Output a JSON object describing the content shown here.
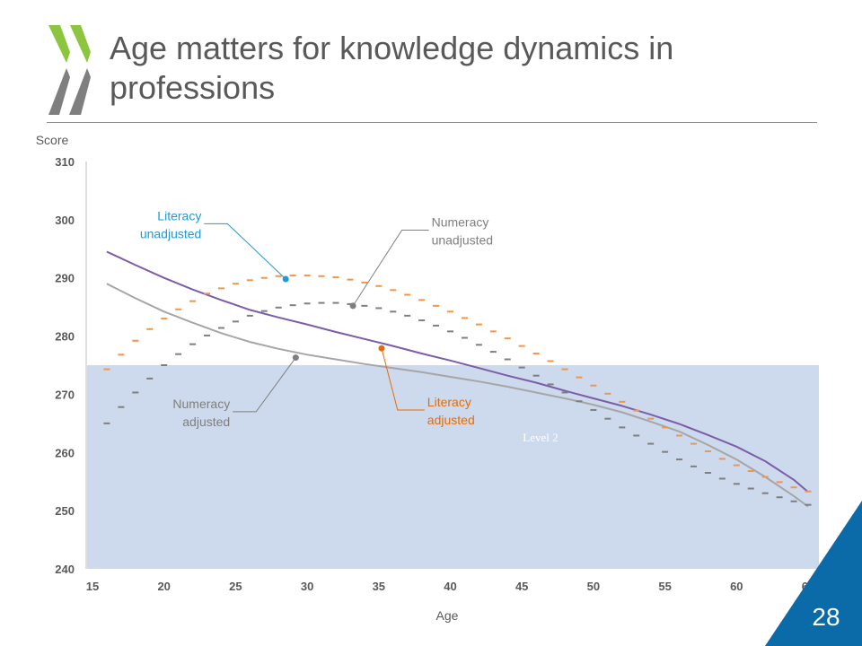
{
  "title": "Age matters for knowledge dynamics in professions",
  "slide_number": "28",
  "colors": {
    "logo_green": "#8cc63f",
    "logo_grey": "#7f7f7f",
    "band": "#cdd9ec",
    "literacy_line": "#7b5ea7",
    "numeracy_line": "#a6a6a6",
    "literacy_dash": "#f0964a",
    "numeracy_dash": "#7f7f7f",
    "accent_blue": "#1f9ad6",
    "accent_orange": "#e46c0a",
    "corner": "#0b6aa8"
  },
  "chart_data": {
    "type": "line",
    "xlabel": "Age",
    "ylabel": "Score",
    "xlim": [
      15,
      65
    ],
    "ylim": [
      240,
      310
    ],
    "xticks": [
      15,
      20,
      25,
      30,
      35,
      40,
      45,
      50,
      55,
      60,
      65
    ],
    "yticks": [
      240,
      250,
      260,
      270,
      280,
      290,
      300,
      310
    ],
    "band": {
      "label": "Level 2",
      "from": 240,
      "to": 275
    },
    "series": [
      {
        "name": "Literacy adjusted",
        "style": "solid",
        "color": "#7b5ea7",
        "x": [
          16,
          18,
          20,
          22,
          24,
          26,
          28,
          30,
          32,
          34,
          36,
          38,
          40,
          42,
          44,
          46,
          48,
          50,
          52,
          54,
          56,
          58,
          60,
          62,
          64,
          65
        ],
        "y": [
          294.5,
          292.2,
          290,
          288,
          286.2,
          284.5,
          283.2,
          282,
          280.7,
          279.5,
          278.3,
          277,
          275.8,
          274.5,
          273.2,
          272,
          270.6,
          269.3,
          268,
          266.5,
          264.9,
          263,
          261,
          258.5,
          255.3,
          253.2
        ]
      },
      {
        "name": "Numeracy adjusted",
        "style": "solid",
        "color": "#a6a6a6",
        "x": [
          16,
          18,
          20,
          22,
          24,
          26,
          28,
          30,
          32,
          34,
          36,
          38,
          40,
          42,
          44,
          46,
          48,
          50,
          52,
          54,
          56,
          58,
          60,
          62,
          64,
          65
        ],
        "y": [
          289,
          286.5,
          284.2,
          282.3,
          280.5,
          279,
          277.8,
          276.8,
          276,
          275.2,
          274.5,
          273.8,
          273,
          272.2,
          271.3,
          270.3,
          269.3,
          268.2,
          266.9,
          265.3,
          263.6,
          261.3,
          258.8,
          255.8,
          252.5,
          250.7
        ]
      },
      {
        "name": "Literacy unadjusted",
        "style": "dashed",
        "color": "#f0964a",
        "x": [
          16,
          17,
          18,
          19,
          20,
          21,
          22,
          23,
          24,
          25,
          26,
          27,
          28,
          29,
          30,
          31,
          32,
          33,
          34,
          35,
          36,
          37,
          38,
          39,
          40,
          41,
          42,
          43,
          44,
          45,
          46,
          47,
          48,
          49,
          50,
          51,
          52,
          53,
          54,
          55,
          56,
          57,
          58,
          59,
          60,
          61,
          62,
          63,
          64,
          65
        ],
        "y": [
          274.3,
          276.8,
          279.2,
          281.2,
          283,
          284.6,
          286,
          287.3,
          288.2,
          289,
          289.6,
          290,
          290.3,
          290.4,
          290.4,
          290.3,
          290.1,
          289.7,
          289.2,
          288.6,
          287.9,
          287.1,
          286.2,
          285.2,
          284.2,
          283.1,
          282,
          280.8,
          279.6,
          278.3,
          277,
          275.7,
          274.3,
          272.9,
          271.5,
          270.1,
          268.7,
          267.2,
          265.8,
          264.3,
          262.9,
          261.5,
          260.2,
          258.9,
          257.8,
          256.8,
          255.8,
          254.9,
          254,
          253.3
        ]
      },
      {
        "name": "Numeracy unadjusted",
        "style": "dashed",
        "color": "#7f7f7f",
        "x": [
          16,
          17,
          18,
          19,
          20,
          21,
          22,
          23,
          24,
          25,
          26,
          27,
          28,
          29,
          30,
          31,
          32,
          33,
          34,
          35,
          36,
          37,
          38,
          39,
          40,
          41,
          42,
          43,
          44,
          45,
          46,
          47,
          48,
          49,
          50,
          51,
          52,
          53,
          54,
          55,
          56,
          57,
          58,
          59,
          60,
          61,
          62,
          63,
          64,
          65
        ],
        "y": [
          265,
          267.8,
          270.3,
          272.7,
          275,
          276.9,
          278.6,
          280.1,
          281.4,
          282.5,
          283.5,
          284.3,
          284.9,
          285.3,
          285.6,
          285.7,
          285.7,
          285.5,
          285.2,
          284.8,
          284.2,
          283.5,
          282.7,
          281.8,
          280.8,
          279.7,
          278.5,
          277.3,
          276,
          274.6,
          273.2,
          271.7,
          270.3,
          268.8,
          267.3,
          265.8,
          264.3,
          262.9,
          261.5,
          260.1,
          258.8,
          257.6,
          256.5,
          255.5,
          254.6,
          253.8,
          253,
          252.3,
          251.6,
          251
        ]
      }
    ],
    "annotations": [
      {
        "text": [
          "Literacy",
          "unadjusted"
        ],
        "color": "#1f9ad6",
        "series": "Literacy unadjusted",
        "point": [
          28.5,
          289.8
        ],
        "label_at": [
          22.8,
          299.3
        ],
        "label_pos": "left"
      },
      {
        "text": [
          "Numeracy",
          "unadjusted"
        ],
        "color": "#7f7f7f",
        "series": "Numeracy unadjusted",
        "point": [
          33.2,
          285.2
        ],
        "label_at": [
          38.5,
          298.2
        ],
        "label_pos": "right"
      },
      {
        "text": [
          "Literacy",
          "adjusted"
        ],
        "color": "#e46c0a",
        "series": "Literacy adjusted",
        "point": [
          35.2,
          277.9
        ],
        "label_at": [
          38.2,
          267.3
        ],
        "label_pos": "right"
      },
      {
        "text": [
          "Numeracy",
          "adjusted"
        ],
        "color": "#7f7f7f",
        "series": "Numeracy adjusted",
        "point": [
          29.2,
          276.3
        ],
        "label_at": [
          24.8,
          267
        ],
        "label_pos": "left"
      }
    ]
  }
}
